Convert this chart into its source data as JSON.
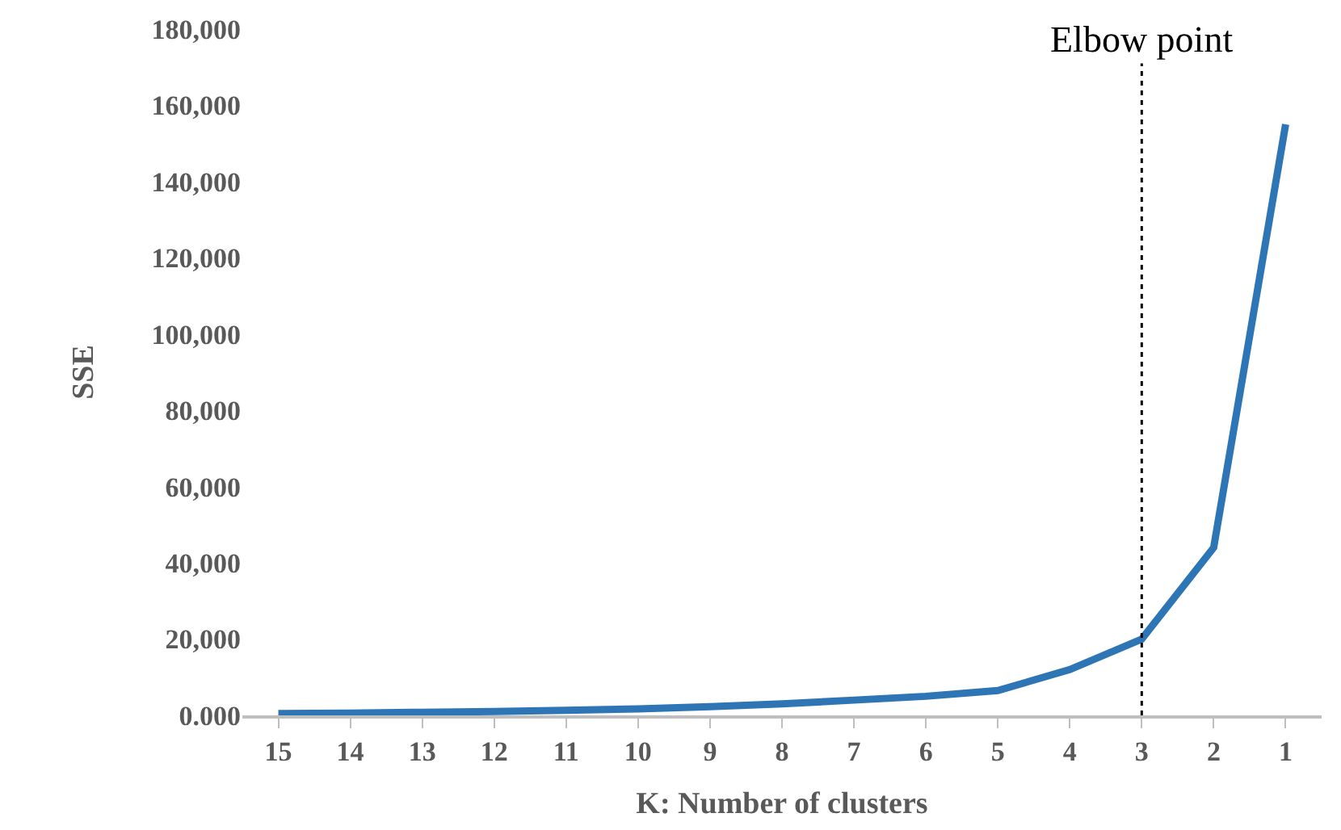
{
  "chart_data": {
    "type": "line",
    "xlabel": "K: Number of clusters",
    "ylabel": "SSE",
    "categories": [
      "15",
      "14",
      "13",
      "12",
      "11",
      "10",
      "9",
      "8",
      "7",
      "6",
      "5",
      "4",
      "3",
      "2",
      "1"
    ],
    "series": [
      {
        "color": "#2e75b6",
        "values": [
          500,
          600,
          800,
          1000,
          1300,
          1700,
          2300,
          3000,
          4000,
          5000,
          6500,
          12000,
          20000,
          44000,
          155000
        ]
      }
    ],
    "ylim": [
      0,
      180000
    ],
    "yticks": [
      {
        "value": 0,
        "label": "0.000"
      },
      {
        "value": 20000,
        "label": "20,000"
      },
      {
        "value": 40000,
        "label": "40,000"
      },
      {
        "value": 60000,
        "label": "60,000"
      },
      {
        "value": 80000,
        "label": "80,000"
      },
      {
        "value": 100000,
        "label": "100,000"
      },
      {
        "value": 120000,
        "label": "120,000"
      },
      {
        "value": 140000,
        "label": "140,000"
      },
      {
        "value": 160000,
        "label": "160,000"
      },
      {
        "value": 180000,
        "label": "180,000"
      }
    ],
    "ref_lines": [
      {
        "axis": "x",
        "value": "3",
        "label": "Elbow point",
        "color": "#000000",
        "line_style": "dotted"
      }
    ],
    "grid": false,
    "legend": false,
    "marker": "none",
    "line_style": "solid"
  }
}
